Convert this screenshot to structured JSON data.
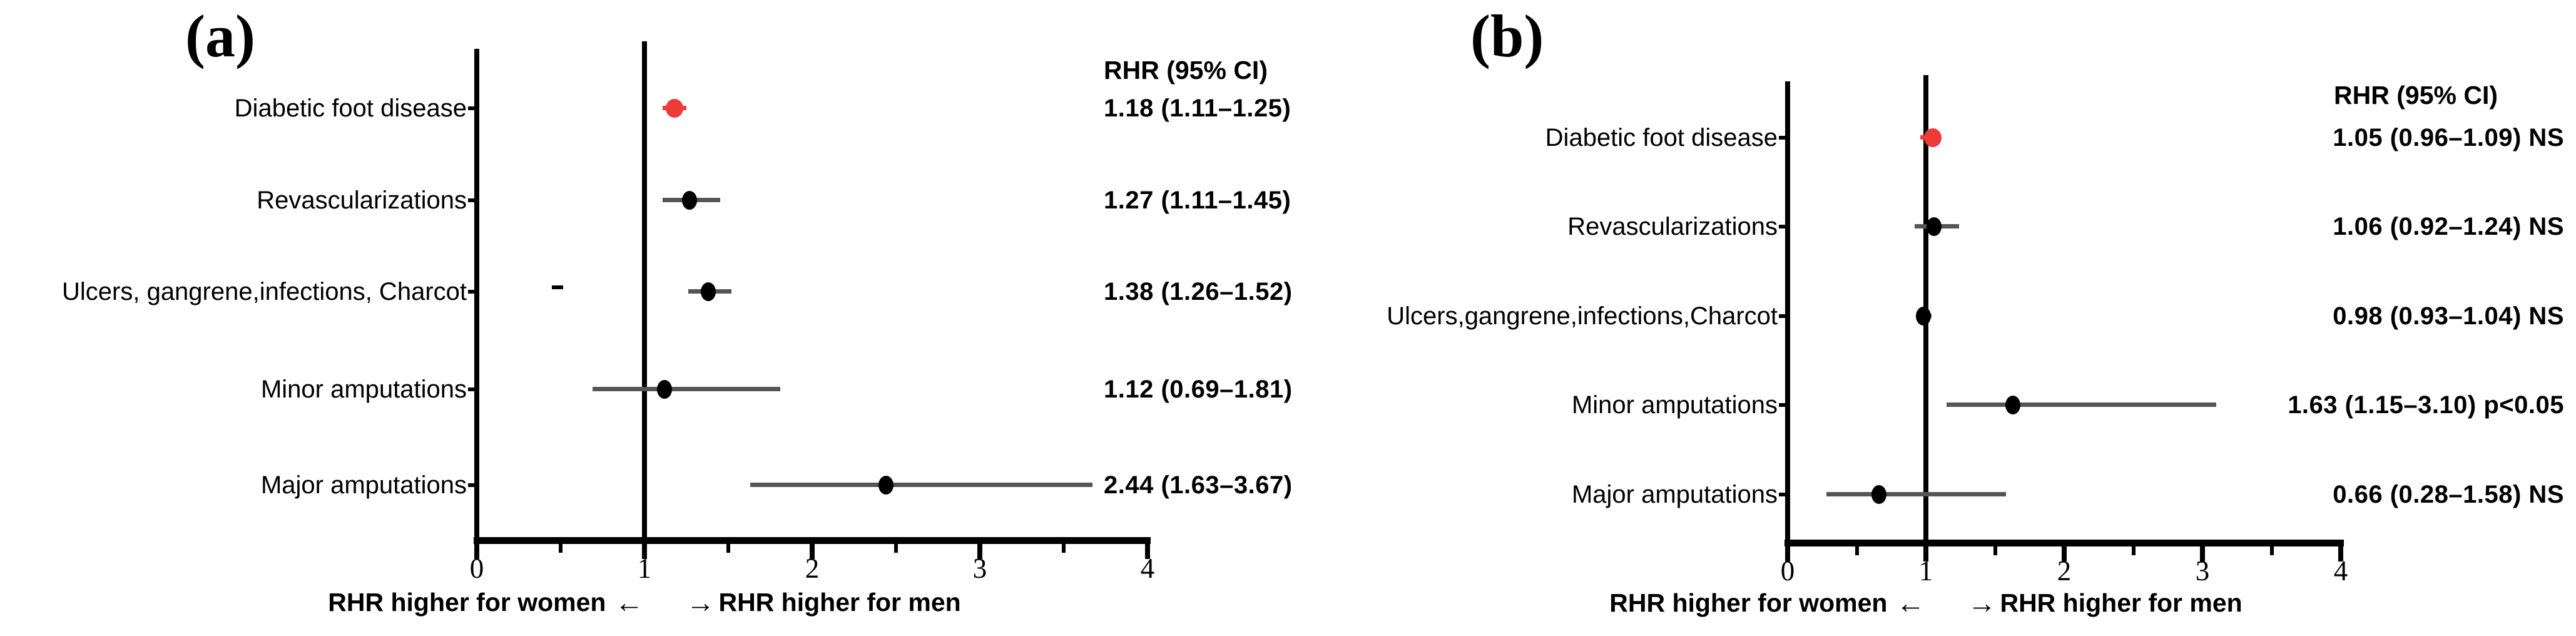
{
  "figure": {
    "background": "#FFFFFF",
    "colors": {
      "red": "#EF3B38",
      "black": "#000000",
      "ci_gray": "#555555"
    },
    "arrow_left": "←",
    "arrow_right": "→"
  },
  "chart_data": [
    {
      "type": "scatter",
      "subtype": "forest-plot",
      "panel_label": "(a)",
      "value_header": "RHR (95% CI)",
      "xlim": [
        0,
        4
      ],
      "xticks": [
        0,
        1,
        2,
        3,
        4
      ],
      "minor_xticks": [
        0.5,
        1.5,
        2.5,
        3.5
      ],
      "refline_x": 1,
      "grid": false,
      "x_axis_note_left": "RHR higher for women",
      "x_axis_note_right": "RHR higher for men",
      "rows": [
        {
          "label": "Diabetic foot disease",
          "rhr": 1.18,
          "ci_low": 1.11,
          "ci_high": 1.25,
          "value_text": "1.18 (1.11–1.25)",
          "marker_color": "red"
        },
        {
          "label": "Revascularizations",
          "rhr": 1.27,
          "ci_low": 1.11,
          "ci_high": 1.45,
          "value_text": "1.27 (1.11–1.45)",
          "marker_color": "black"
        },
        {
          "label": "Ulcers, gangrene,infections, Charcot",
          "rhr": 1.38,
          "ci_low": 1.26,
          "ci_high": 1.52,
          "value_text": "1.38 (1.26–1.52)",
          "marker_color": "black",
          "stray_dash_x": 0.48
        },
        {
          "label": "Minor amputations",
          "rhr": 1.12,
          "ci_low": 0.69,
          "ci_high": 1.81,
          "value_text": "1.12 (0.69–1.81)",
          "marker_color": "black"
        },
        {
          "label": "Major amputations",
          "rhr": 2.44,
          "ci_low": 1.63,
          "ci_high": 3.67,
          "value_text": "2.44 (1.63–3.67)",
          "marker_color": "black"
        }
      ]
    },
    {
      "type": "scatter",
      "subtype": "forest-plot",
      "panel_label": "(b)",
      "value_header": "RHR (95% CI)",
      "xlim": [
        0,
        4
      ],
      "xticks": [
        0,
        1,
        2,
        3,
        4
      ],
      "minor_xticks": [
        0.5,
        1.5,
        2.5,
        3.5
      ],
      "refline_x": 1,
      "grid": false,
      "x_axis_note_left": "RHR higher for women",
      "x_axis_note_right": "RHR higher for men",
      "rows": [
        {
          "label": "Diabetic foot disease",
          "rhr": 1.05,
          "ci_low": 0.96,
          "ci_high": 1.09,
          "value_text": "1.05 (0.96–1.09) NS",
          "marker_color": "red"
        },
        {
          "label": "Revascularizations",
          "rhr": 1.06,
          "ci_low": 0.92,
          "ci_high": 1.24,
          "value_text": "1.06 (0.92–1.24) NS",
          "marker_color": "black"
        },
        {
          "label": "Ulcers,gangrene,infections,Charcot",
          "rhr": 0.98,
          "ci_low": 0.93,
          "ci_high": 1.04,
          "value_text": "0.98 (0.93–1.04) NS",
          "marker_color": "black"
        },
        {
          "label": "Minor amputations",
          "rhr": 1.63,
          "ci_low": 1.15,
          "ci_high": 3.1,
          "value_text": "1.63 (1.15–3.10) p<0.05",
          "marker_color": "black"
        },
        {
          "label": "Major amputations",
          "rhr": 0.66,
          "ci_low": 0.28,
          "ci_high": 1.58,
          "value_text": "0.66 (0.28–1.58) NS",
          "marker_color": "black"
        }
      ]
    }
  ]
}
